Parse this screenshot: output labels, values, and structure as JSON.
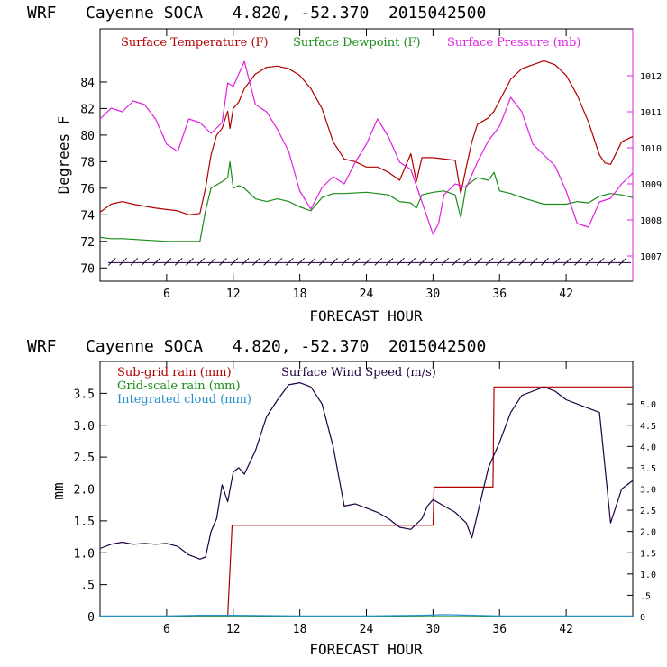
{
  "chart_data": [
    {
      "type": "line",
      "title": "WRF   Cayenne SOCA   4.820, -52.370  2015042500",
      "xlabel": "FORECAST HOUR",
      "ylabel": "Degrees F",
      "xlim": [
        0,
        48
      ],
      "ylim": [
        69,
        88
      ],
      "y2lim": [
        1006.3,
        1013.3
      ],
      "xticks": [
        "6",
        "12",
        "18",
        "24",
        "30",
        "36",
        "42"
      ],
      "yticks": [
        "70",
        "72",
        "74",
        "76",
        "78",
        "80",
        "82",
        "84"
      ],
      "y2ticks": [
        "1007",
        "1008",
        "1009",
        "1010",
        "1011",
        "1012"
      ],
      "colors": {
        "temperature": "#b00000",
        "dewpoint": "#1a8c1a",
        "pressure": "#e020e0",
        "wind": "#200040"
      },
      "series": [
        {
          "name": "Surface Temperature (F)",
          "axis": "left",
          "x": [
            0,
            1,
            2,
            3,
            5,
            7,
            8,
            9,
            9.5,
            10,
            10.5,
            11,
            11.5,
            11.7,
            12,
            12.5,
            13,
            14,
            15,
            16,
            17,
            18,
            19,
            20,
            21,
            22,
            23,
            24,
            25,
            26,
            27,
            28,
            28.5,
            29,
            30,
            31,
            32,
            32.5,
            33,
            33.5,
            34,
            35,
            35.5,
            36,
            37,
            38,
            39,
            40,
            41,
            42,
            43,
            44,
            45,
            45.5,
            46,
            47,
            48
          ],
          "values": [
            74.2,
            74.8,
            75.0,
            74.8,
            74.5,
            74.3,
            74.0,
            74.1,
            76.0,
            78.5,
            80.0,
            80.5,
            81.8,
            80.5,
            82.0,
            82.5,
            83.5,
            84.6,
            85.1,
            85.2,
            85.0,
            84.5,
            83.5,
            82.0,
            79.5,
            78.2,
            78.0,
            77.6,
            77.6,
            77.2,
            76.6,
            78.6,
            76.5,
            78.3,
            78.3,
            78.2,
            78.1,
            75.6,
            77.6,
            79.5,
            80.8,
            81.3,
            81.8,
            82.6,
            84.2,
            85.0,
            85.3,
            85.6,
            85.3,
            84.5,
            83.0,
            81.0,
            78.5,
            77.9,
            77.8,
            79.5,
            79.9
          ]
        },
        {
          "name": "Surface Dewpoint (F)",
          "axis": "left",
          "x": [
            0,
            1,
            2,
            4,
            6,
            8,
            9,
            9.5,
            10,
            11,
            11.5,
            11.7,
            12,
            12.5,
            13,
            14,
            15,
            16,
            17,
            18,
            19,
            20,
            21,
            22,
            24,
            25,
            26,
            27,
            28,
            28.5,
            29,
            30,
            31,
            32,
            32.5,
            33,
            34,
            35,
            35.5,
            36,
            37,
            38,
            40,
            42,
            43,
            44,
            45,
            46,
            47,
            48
          ],
          "values": [
            72.3,
            72.2,
            72.2,
            72.1,
            72.0,
            72.0,
            72.0,
            74.3,
            76.0,
            76.5,
            76.8,
            78.0,
            76.0,
            76.2,
            76.0,
            75.2,
            75.0,
            75.2,
            75.0,
            74.6,
            74.3,
            75.3,
            75.6,
            75.6,
            75.7,
            75.6,
            75.5,
            75.0,
            74.9,
            74.5,
            75.5,
            75.7,
            75.8,
            75.5,
            73.8,
            76.2,
            76.8,
            76.6,
            77.2,
            75.8,
            75.6,
            75.3,
            74.8,
            74.8,
            75.0,
            74.9,
            75.4,
            75.6,
            75.5,
            75.3
          ]
        },
        {
          "name": "Surface Pressure (mb)",
          "axis": "right",
          "x": [
            0,
            1,
            2,
            3,
            4,
            5,
            6,
            7,
            8,
            9,
            10,
            11,
            11.5,
            12,
            13,
            14,
            15,
            16,
            17,
            18,
            19,
            20,
            21,
            22,
            23,
            24,
            25,
            26,
            27,
            28,
            29,
            30,
            30.5,
            31,
            32,
            33,
            34,
            35,
            36,
            37,
            38,
            39,
            40,
            41,
            42,
            43,
            44,
            45,
            46,
            47,
            48
          ],
          "values": [
            1010.8,
            1011.1,
            1011.0,
            1011.3,
            1011.2,
            1010.8,
            1010.1,
            1009.9,
            1010.8,
            1010.7,
            1010.4,
            1010.7,
            1011.8,
            1011.7,
            1012.4,
            1011.2,
            1011.0,
            1010.5,
            1009.9,
            1008.8,
            1008.3,
            1008.9,
            1009.2,
            1009.0,
            1009.6,
            1010.1,
            1010.8,
            1010.3,
            1009.6,
            1009.4,
            1008.5,
            1007.6,
            1007.9,
            1008.7,
            1009.0,
            1008.9,
            1009.6,
            1010.2,
            1010.6,
            1011.4,
            1011.0,
            1010.1,
            1009.8,
            1009.5,
            1008.8,
            1007.9,
            1007.8,
            1008.5,
            1008.6,
            1009.0,
            1009.3
          ]
        }
      ],
      "wind_barbs": {
        "name": "wind barbs",
        "y": 70.4,
        "x": [
          1,
          2,
          3,
          4,
          5,
          6,
          7,
          8,
          9,
          10,
          11,
          12,
          13,
          14,
          15,
          16,
          17,
          18,
          19,
          20,
          21,
          22,
          23,
          24,
          25,
          26,
          27,
          28,
          29,
          30,
          31,
          32,
          33,
          34,
          35,
          36,
          37,
          38,
          39,
          40,
          41,
          42,
          43,
          44,
          45,
          46,
          47
        ]
      },
      "legend": [
        "Surface Temperature (F)",
        "Surface Dewpoint (F)",
        "Surface Pressure (mb)"
      ],
      "legend_placement": "top"
    },
    {
      "type": "line",
      "title": "WRF   Cayenne SOCA   4.820, -52.370  2015042500",
      "xlabel": "FORECAST HOUR",
      "ylabel": "mm",
      "xlim": [
        0,
        48
      ],
      "ylim": [
        0,
        4.0
      ],
      "y2lim": [
        0,
        6.0
      ],
      "xticks": [
        "6",
        "12",
        "18",
        "24",
        "30",
        "36",
        "42"
      ],
      "yticks": [
        "0",
        ".5",
        "1.0",
        "1.5",
        "2.0",
        "2.5",
        "3.0",
        "3.5"
      ],
      "y2ticks": [
        "0",
        ".5",
        "1.0",
        "1.5",
        "2.0",
        "2.5",
        "3.0",
        "3.5",
        "4.0",
        "4.5",
        "5.0"
      ],
      "colors": {
        "subgrid": "#b00000",
        "gridscale": "#1a8c1a",
        "cloud": "#2090d0",
        "wind": "#200040"
      },
      "series": [
        {
          "name": "Sub-grid rain (mm)",
          "axis": "left",
          "step": true,
          "x": [
            0,
            11.5,
            11.9,
            30.0,
            30.1,
            35.4,
            35.5,
            48
          ],
          "values": [
            0,
            0,
            1.43,
            1.43,
            2.03,
            2.03,
            3.6,
            3.6
          ]
        },
        {
          "name": "Grid-scale rain (mm)",
          "axis": "left",
          "x": [
            0,
            48
          ],
          "values": [
            0,
            0
          ]
        },
        {
          "name": "Integrated cloud (mm)",
          "axis": "left",
          "x": [
            0,
            6,
            9,
            12,
            18,
            24,
            29,
            31,
            36,
            42,
            48
          ],
          "values": [
            0.01,
            0.01,
            0.02,
            0.02,
            0.01,
            0.01,
            0.02,
            0.03,
            0.01,
            0.01,
            0.01
          ]
        },
        {
          "name": "Surface Wind Speed (m/s)",
          "axis": "right",
          "x": [
            0,
            1,
            2,
            3,
            4,
            5,
            6,
            7,
            8,
            9,
            9.5,
            10,
            10.5,
            11,
            11.5,
            12,
            12.5,
            13,
            14,
            15,
            16,
            17,
            18,
            19,
            20,
            21,
            22,
            23,
            24,
            25,
            26,
            27,
            28,
            29,
            29.5,
            30,
            31,
            32,
            33,
            33.5,
            34,
            35,
            36,
            37,
            38,
            39,
            40,
            41,
            42,
            43,
            44,
            45,
            46,
            47,
            48
          ],
          "values": [
            1.6,
            1.7,
            1.75,
            1.7,
            1.72,
            1.7,
            1.72,
            1.65,
            1.45,
            1.35,
            1.4,
            2.0,
            2.3,
            3.1,
            2.7,
            3.4,
            3.5,
            3.35,
            3.9,
            4.7,
            5.1,
            5.45,
            5.5,
            5.4,
            5.0,
            4.0,
            2.6,
            2.65,
            2.55,
            2.45,
            2.3,
            2.1,
            2.05,
            2.3,
            2.6,
            2.75,
            2.6,
            2.45,
            2.2,
            1.85,
            2.4,
            3.5,
            4.1,
            4.8,
            5.2,
            5.3,
            5.4,
            5.3,
            5.1,
            5.0,
            4.9,
            4.8,
            2.2,
            3.0,
            3.2
          ]
        }
      ],
      "legend": [
        "Sub-grid rain (mm)",
        "Grid-scale rain (mm)",
        "Integrated cloud (mm)",
        "Surface Wind Speed (m/s)"
      ],
      "legend_placement": "top-left"
    }
  ]
}
